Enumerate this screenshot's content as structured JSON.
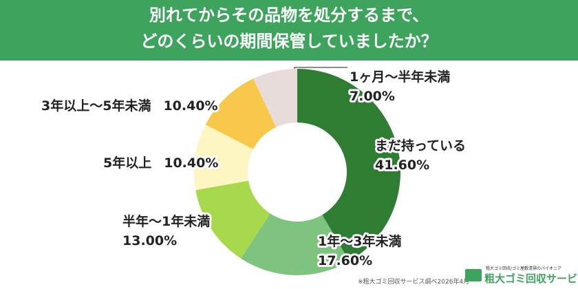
{
  "chart_data": {
    "type": "donut",
    "title": [
      "別れてからその品物を処分するまで、",
      "どのくらいの期間保管していましたか？"
    ],
    "categories": [
      "まだ持っている",
      "1年～3年未満",
      "半年～1年未満",
      "5年以上",
      "3年以上～5年未満",
      "1ヶ月～半年未満"
    ],
    "values": [
      41.6,
      17.6,
      13.0,
      10.4,
      10.4,
      7.0
    ],
    "value_labels": [
      "41.60%",
      "17.60%",
      "13.00%",
      "10.40%",
      "10.40%",
      "7.00%"
    ],
    "colors": [
      "#2f7d32",
      "#7ec47f",
      "#a8d84c",
      "#fdf6c3",
      "#f8c84a",
      "#e8dcdb"
    ],
    "source": "※粗大ゴミ回収サービス調べ2026年4月",
    "logo": {
      "tagline": "粗大ゴミ回収/ゴミ屋敷清掃のパイオニア",
      "name": "粗大ゴミ回収サービス"
    }
  }
}
